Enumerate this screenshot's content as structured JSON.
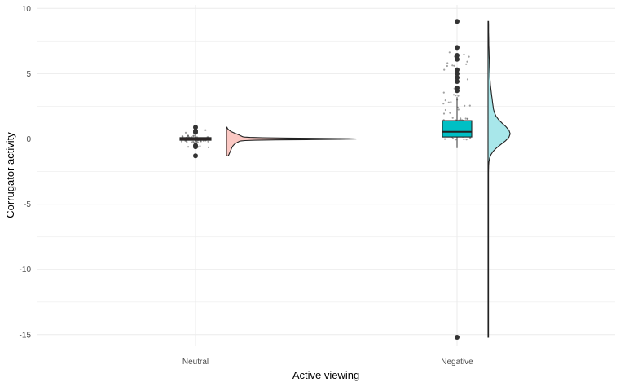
{
  "chart_data": {
    "type": "raincloud",
    "xlabel": "Active viewing",
    "ylabel": "Corrugator activity",
    "ylim": [
      -15.5,
      10.5
    ],
    "yticks": [
      "10",
      "5",
      "0",
      "-5",
      "-10",
      "-15"
    ],
    "categories": [
      "Neutral",
      "Negative"
    ],
    "grid": true,
    "groups": [
      {
        "name": "Neutral",
        "color": "#F8766D",
        "fill": "#FBC8C3",
        "box": {
          "q1": -0.1,
          "median": 0.0,
          "q3": 0.1,
          "whisker_low": -0.25,
          "whisker_high": 0.3
        },
        "outliers": [
          0.9,
          0.6,
          0.5,
          -0.5,
          -0.6,
          -1.3
        ],
        "density_range": [
          -1.3,
          0.9
        ]
      },
      {
        "name": "Negative",
        "color": "#00BFC4",
        "fill": "#A8E7EA",
        "box": {
          "q1": 0.15,
          "median": 0.55,
          "q3": 1.4,
          "whisker_low": -0.7,
          "whisker_high": 3.2
        },
        "outliers": [
          9.0,
          7.0,
          6.4,
          6.1,
          5.3,
          5.0,
          4.7,
          4.4,
          3.9,
          3.7,
          -15.2
        ],
        "density_range": [
          -15.2,
          9.0
        ]
      }
    ]
  }
}
